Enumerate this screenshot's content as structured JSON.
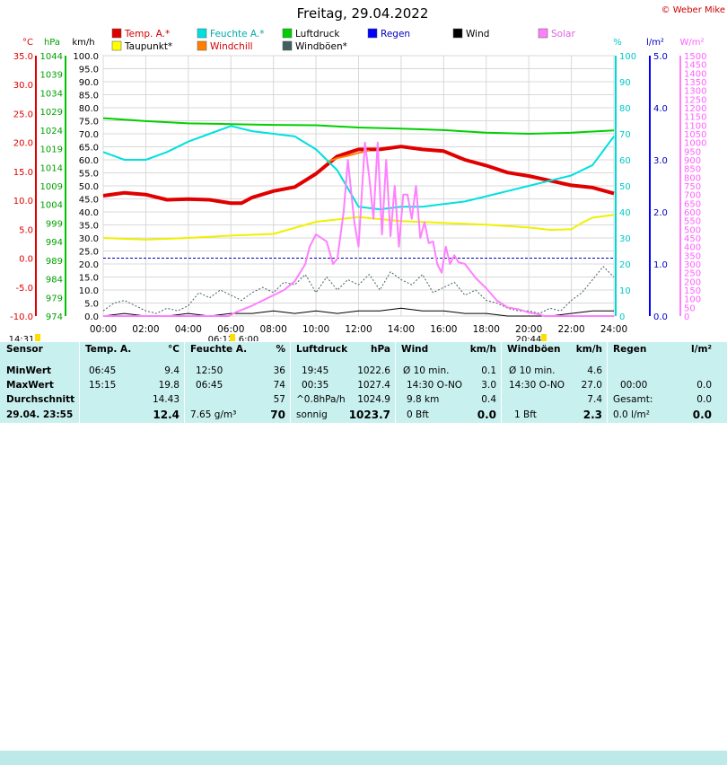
{
  "title": "Freitag, 29.04.2022",
  "copyright": "© Weber Mike",
  "axis_units": {
    "temp": "°C",
    "pressure": "hPa",
    "speed": "km/h",
    "humidity": "%",
    "rain": "l/m²",
    "solar": "W/m²"
  },
  "legend": [
    {
      "label": "Temp. A.*",
      "color": "#e00000"
    },
    {
      "label": "Taupunkt*",
      "color": "#ffff00"
    },
    {
      "label": "Feuchte A.*",
      "color": "#00e0e0"
    },
    {
      "label": "Windchill",
      "color": "#ff8000"
    },
    {
      "label": "Luftdruck",
      "color": "#00d000"
    },
    {
      "label": "Windböen*",
      "color": "#406060"
    },
    {
      "label": "Regen",
      "color": "#0000ff"
    },
    {
      "label": "Wind",
      "color": "#000000"
    },
    {
      "label": "Solar",
      "color": "#ff80ff"
    }
  ],
  "time_markers": {
    "left": "14:31",
    "sunrise": "06:12",
    "sunrise2": "6:00",
    "sunset": "20:44"
  },
  "chart_data": {
    "type": "line",
    "x_ticks": [
      "00:00",
      "02:00",
      "04:00",
      "06:00",
      "08:00",
      "10:00",
      "12:00",
      "14:00",
      "16:00",
      "18:00",
      "20:00",
      "22:00",
      "24:00"
    ],
    "xlim": [
      0,
      24
    ],
    "axes": {
      "temp": {
        "ticks": [
          "35.0",
          "30.0",
          "25.0",
          "20.0",
          "15.0",
          "10.0",
          "5.0",
          "0.0",
          "-5.0",
          "-10.0"
        ],
        "ylim": [
          -10,
          35
        ]
      },
      "pressure": {
        "ticks": [
          "1044",
          "1039",
          "1034",
          "1029",
          "1024",
          "1019",
          "1014",
          "1009",
          "1004",
          "999",
          "994",
          "989",
          "984",
          "979",
          "974"
        ],
        "ylim": [
          974,
          1044
        ]
      },
      "speed": {
        "ticks": [
          "100.0",
          "95.0",
          "90.0",
          "85.0",
          "80.0",
          "75.0",
          "70.0",
          "65.0",
          "60.0",
          "55.0",
          "50.0",
          "45.0",
          "40.0",
          "35.0",
          "30.0",
          "25.0",
          "20.0",
          "15.0",
          "10.0",
          "5.0",
          "0.0"
        ],
        "ylim": [
          0,
          100
        ]
      },
      "humidity": {
        "ticks": [
          "100",
          "90",
          "80",
          "70",
          "60",
          "50",
          "40",
          "30",
          "20",
          "10",
          "0"
        ],
        "ylim": [
          0,
          100
        ]
      },
      "rain": {
        "ticks": [
          "5.0",
          "4.0",
          "3.0",
          "2.0",
          "1.0",
          "0.0"
        ],
        "ylim": [
          0,
          5
        ]
      },
      "solar": {
        "ticks": [
          "1500",
          "1450",
          "1400",
          "1350",
          "1300",
          "1250",
          "1200",
          "1150",
          "1100",
          "1050",
          "1000",
          "950",
          "900",
          "850",
          "800",
          "750",
          "700",
          "650",
          "600",
          "550",
          "500",
          "450",
          "400",
          "350",
          "300",
          "250",
          "200",
          "150",
          "100",
          "50",
          "0"
        ],
        "ylim": [
          0,
          1500
        ]
      }
    },
    "series": [
      {
        "name": "Temp. A.*",
        "axis": "temp",
        "color": "#e00000",
        "width": 4,
        "x": [
          0,
          1,
          2,
          3,
          4,
          5,
          6,
          6.5,
          7,
          8,
          9,
          10,
          11,
          12,
          13,
          14,
          15,
          16,
          17,
          18,
          19,
          20,
          21,
          22,
          23,
          24
        ],
        "y": [
          10.8,
          11.3,
          11.0,
          10.1,
          10.2,
          10.1,
          9.5,
          9.5,
          10.5,
          11.6,
          12.3,
          14.6,
          17.6,
          18.8,
          18.8,
          19.3,
          18.8,
          18.5,
          17.0,
          16.0,
          14.8,
          14.2,
          13.4,
          12.6,
          12.2,
          11.2
        ]
      },
      {
        "name": "Taupunkt*",
        "axis": "temp",
        "color": "#ffff00",
        "width": 2,
        "x": [
          0,
          2,
          4,
          6,
          8,
          10,
          12,
          14,
          16,
          18,
          20,
          21,
          22,
          22.5,
          23,
          24
        ],
        "y": [
          3.5,
          3.2,
          3.5,
          3.9,
          4.2,
          6.3,
          7.1,
          6.4,
          6.1,
          5.8,
          5.3,
          4.9,
          5.0,
          6.1,
          7.0,
          7.5
        ]
      },
      {
        "name": "Windchill",
        "axis": "temp",
        "color": "#ff8000",
        "width": 2,
        "x": [
          10.5,
          11,
          11.5,
          12,
          12.5
        ],
        "y": [
          16.6,
          17.3,
          17.7,
          18.2,
          18.6
        ]
      },
      {
        "name": "Feuchte A.*",
        "axis": "humidity",
        "color": "#00e0e0",
        "width": 2,
        "x": [
          0,
          1,
          2,
          3,
          4,
          5,
          6,
          7,
          8,
          9,
          10,
          11,
          12,
          13,
          14,
          15,
          16,
          17,
          18,
          19,
          20,
          21,
          22,
          23,
          24
        ],
        "y": [
          63,
          60,
          60,
          63,
          67,
          70,
          73,
          71,
          70,
          69,
          64,
          56,
          42,
          41,
          42,
          42,
          43,
          44,
          46,
          48,
          50,
          52,
          54,
          58,
          69
        ]
      },
      {
        "name": "Luftdruck",
        "axis": "pressure",
        "color": "#00d000",
        "width": 2,
        "x": [
          0,
          2,
          4,
          6,
          8,
          10,
          12,
          14,
          16,
          18,
          20,
          22,
          24
        ],
        "y": [
          1027.2,
          1026.4,
          1025.8,
          1025.6,
          1025.4,
          1025.3,
          1024.7,
          1024.4,
          1024.0,
          1023.3,
          1023.0,
          1023.3,
          1023.9
        ]
      },
      {
        "name": "Windböen*",
        "axis": "speed",
        "color": "#406060",
        "width": 1,
        "dashed": true,
        "x": [
          0,
          0.5,
          1,
          1.5,
          2,
          2.5,
          3,
          3.5,
          4,
          4.5,
          5,
          5.5,
          6,
          6.5,
          7,
          7.5,
          8,
          8.5,
          9,
          9.5,
          10,
          10.5,
          11,
          11.5,
          12,
          12.5,
          13,
          13.5,
          14,
          14.5,
          15,
          15.5,
          16,
          16.5,
          17,
          17.5,
          18,
          18.5,
          19,
          19.5,
          20,
          20.5,
          21,
          21.5,
          22,
          22.5,
          23,
          23.5,
          24
        ],
        "y": [
          2,
          5,
          6,
          4,
          2,
          1,
          3,
          2,
          4,
          9,
          7,
          10,
          8,
          6,
          9,
          11,
          9,
          13,
          12,
          16,
          9,
          15,
          10,
          14,
          12,
          16,
          10,
          17,
          14,
          12,
          16,
          9,
          11,
          13,
          8,
          10,
          6,
          5,
          3,
          2,
          2,
          1,
          3,
          2,
          6,
          9,
          14,
          19,
          15
        ]
      },
      {
        "name": "Wind",
        "axis": "speed",
        "color": "#000000",
        "width": 1,
        "x": [
          0,
          1,
          2,
          3,
          4,
          5,
          6,
          7,
          8,
          9,
          10,
          11,
          12,
          13,
          14,
          15,
          16,
          17,
          18,
          19,
          20,
          21,
          22,
          23,
          24
        ],
        "y": [
          0,
          1,
          0,
          0,
          1,
          0,
          1,
          1,
          2,
          1,
          2,
          1,
          2,
          2,
          3,
          2,
          2,
          1,
          1,
          0,
          0,
          0,
          1,
          2,
          2
        ]
      },
      {
        "name": "Solar",
        "axis": "solar",
        "color": "#ff80ff",
        "width": 2,
        "x": [
          0,
          5.9,
          6.2,
          7,
          8,
          8.5,
          9,
          9.5,
          9.7,
          10,
          10.5,
          10.8,
          11,
          11.3,
          11.5,
          11.8,
          12,
          12.3,
          12.5,
          12.7,
          12.9,
          13.1,
          13.3,
          13.5,
          13.7,
          13.9,
          14.1,
          14.3,
          14.5,
          14.7,
          14.9,
          15.1,
          15.3,
          15.5,
          15.7,
          15.9,
          16.1,
          16.3,
          16.5,
          16.7,
          17,
          17.5,
          18,
          18.5,
          19,
          19.5,
          20,
          20.5,
          20.7,
          24
        ],
        "y": [
          0,
          0,
          20,
          60,
          120,
          150,
          200,
          300,
          400,
          470,
          430,
          300,
          330,
          600,
          900,
          540,
          400,
          1000,
          800,
          560,
          1000,
          470,
          900,
          460,
          750,
          400,
          700,
          700,
          560,
          750,
          450,
          540,
          420,
          430,
          300,
          250,
          400,
          300,
          350,
          310,
          300,
          220,
          160,
          90,
          50,
          40,
          20,
          10,
          0,
          0
        ]
      }
    ]
  },
  "stats": {
    "col_sensor": {
      "header": "Sensor",
      "rows": [
        "MinWert",
        "MaxWert",
        "Durchschnitt"
      ],
      "footer": "29.04. 23:55"
    },
    "col_temp": {
      "header": "Temp. A.",
      "unit": "°C",
      "rows": [
        [
          "06:45",
          "9.4"
        ],
        [
          "15:15",
          "19.8"
        ],
        [
          "",
          "14.43"
        ]
      ],
      "footer": "12.4"
    },
    "col_hum": {
      "header": "Feuchte A.",
      "unit": "%",
      "rows": [
        [
          "12:50",
          "36"
        ],
        [
          "06:45",
          "74"
        ],
        [
          "",
          "57"
        ]
      ],
      "footer_left": "7.65 g/m³",
      "footer": "70"
    },
    "col_press": {
      "header": "Luftdruck",
      "unit": "hPa",
      "rows": [
        [
          "19:45",
          "1022.6"
        ],
        [
          "00:35",
          "1027.4"
        ],
        [
          "^0.8hPa/h",
          "1024.9"
        ]
      ],
      "footer_left": "sonnig",
      "footer": "1023.7"
    },
    "col_wind": {
      "header": "Wind",
      "unit": "km/h",
      "rows": [
        [
          "Ø 10 min.",
          "0.1"
        ],
        [
          "14:30 O-NO",
          "3.0"
        ],
        [
          "9.8 km",
          "0.4"
        ]
      ],
      "footer_left": "0 Bft",
      "footer": "0.0"
    },
    "col_gust": {
      "header": "Windböen",
      "unit": "km/h",
      "rows": [
        [
          "Ø 10 min.",
          "4.6"
        ],
        [
          "14:30 O-NO",
          "27.0"
        ],
        [
          "",
          "7.4"
        ]
      ],
      "footer_left": "1 Bft",
      "footer": "2.3"
    },
    "col_rain": {
      "header": "Regen",
      "unit": "l/m²",
      "rows": [
        [
          "",
          ""
        ],
        [
          "00:00",
          "0.0"
        ],
        [
          "Gesamt:",
          "0.0"
        ]
      ],
      "footer_left": "0.0 l/m²",
      "footer": "0.0"
    }
  }
}
